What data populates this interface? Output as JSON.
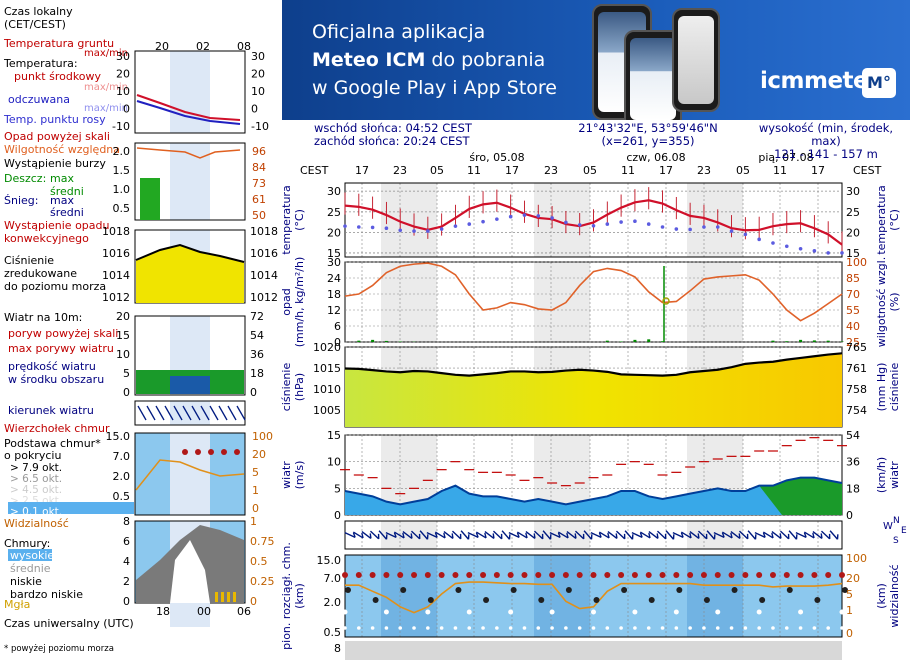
{
  "legend": {
    "time_zone": "Czas lokalny\n(CET/CEST)",
    "top_hours": [
      "20",
      "02",
      "08"
    ],
    "temp_ground": "Temperatura gruntu",
    "temp_ground_maxmin": "max/min",
    "temperature": "Temperatura:",
    "temp_mid": "punkt środkowy",
    "temp_maxmin": "max/min",
    "temp_feel": "odczuwana",
    "temp_feel_maxmin": "max/min",
    "temp_dew": "Temp. punktu rosy",
    "precip_above": "Opad powyżej skali",
    "humidity": "Wilgotność względna",
    "storm": "Wystąpienie burzy",
    "rain": "Deszcz:",
    "rain_max": "max",
    "rain_avg": "średni",
    "snow": "Śnieg:",
    "snow_max": "max",
    "snow_avg": "średni",
    "convective": "Wystąpienie opadu\nkonwekcyjnego",
    "pressure": "Ciśnienie\nzredukowane\ndo poziomu morza",
    "wind_at": "Wiatr na 10m:",
    "gust_above": "poryw powyżej skali",
    "gust_max": "max porywy wiatru",
    "wind_speed": "prędkość wiatru\nw środku obszaru",
    "wind_dir": "kierunek wiatru",
    "cloud_top": "Wierzchołek chmur",
    "cloud_base": "Podstawa chmur*\no pokryciu",
    "okt": [
      "> 7.9 okt.",
      "> 6.5 okt.",
      "> 4.5 okt.",
      "> 2.5 okt.",
      "> 0.1 okt."
    ],
    "visibility": "Widzialność",
    "clouds": "Chmury:",
    "cloud_levels": [
      "wysokie",
      "średnie",
      "niskie",
      "bardzo niskie"
    ],
    "fog": "Mgła",
    "utc": "Czas uniwersalny (UTC)",
    "bottom_hours": [
      "18",
      "00",
      "06"
    ],
    "footnote": "* powyżej poziomu morza"
  },
  "banner": {
    "line1": "Oficjalna aplikacja",
    "line2_bold": "Meteo ICM",
    "line2_rest": " do pobrania",
    "line3": "w Google Play i App Store",
    "logo": "icmmeteo",
    "badge": "M°"
  },
  "info": {
    "sunrise": "wschód słońca: 04:52 CEST",
    "sunset": "zachód słońca: 20:24 CEST",
    "coords": "21°43'32\"E, 53°59'46\"N",
    "grid": "(x=261,  y=355)",
    "height_label": "wysokość (min, środek, max)",
    "height_values": "121 - 141 - 157 m"
  },
  "chart_data": [
    {
      "type": "line",
      "title": "temperatura",
      "days": [
        "śro, 05.08",
        "czw, 06.08",
        "pią, 07.08"
      ],
      "hour_ticks": [
        "17",
        "23",
        "05",
        "11",
        "17",
        "23",
        "05",
        "11",
        "17",
        "23",
        "05",
        "11",
        "17"
      ],
      "tz_label": "CEST",
      "ylabel": "temperatura\n(°C)",
      "ylim": [
        14,
        32
      ],
      "y_ticks": [
        15,
        20,
        25,
        30
      ],
      "series": [
        {
          "name": "temperatura",
          "color": "#d0102a",
          "values": [
            26.5,
            26.2,
            25.5,
            24.2,
            22.6,
            21.4,
            20.6,
            21.4,
            23.5,
            25.7,
            26.8,
            27.2,
            26.0,
            24.5,
            23.5,
            23.2,
            22.0,
            21.5,
            22.4,
            24.3,
            26.0,
            27.3,
            27.8,
            27.0,
            25.4,
            24.0,
            23.5,
            22.4,
            21.0,
            20.5,
            20.6,
            21.5,
            22.0,
            22.2,
            21.0,
            19.5,
            17.0
          ]
        },
        {
          "name": "punkt rosy",
          "color": "#5c5ce0",
          "values": [
            21.5,
            21.3,
            21.2,
            21.0,
            20.5,
            20.3,
            20.3,
            20.8,
            21.5,
            22.0,
            22.6,
            23.2,
            23.8,
            24.2,
            24.0,
            23.5,
            22.4,
            21.8,
            21.6,
            22.0,
            22.5,
            22.7,
            22.0,
            21.3,
            20.8,
            20.7,
            21.3,
            21.3,
            20.3,
            19.5,
            18.3,
            17.4,
            16.6,
            16.0,
            15.5,
            15.0,
            15.0
          ]
        }
      ]
    },
    {
      "type": "bar",
      "title": "opad",
      "ylabel": "opad\n(mm/h, kg/m²/h)",
      "ylim": [
        0,
        30
      ],
      "y_ticks": [
        0,
        6,
        12,
        18,
        24,
        30
      ],
      "y2label": "wilgotność wzgl.\n(%)",
      "y2lim": [
        25,
        100
      ],
      "y2_ticks": [
        25,
        40,
        55,
        70,
        85,
        100
      ],
      "series": [
        {
          "name": "wilgotność względna",
          "color": "#e0622a",
          "values": [
            68,
            70,
            78,
            90,
            96,
            98,
            99,
            96,
            88,
            70,
            55,
            57,
            62,
            60,
            56,
            55,
            62,
            78,
            91,
            94,
            92,
            86,
            72,
            62,
            63,
            73,
            84,
            86,
            87,
            88,
            83,
            70,
            55,
            45,
            52,
            61,
            70
          ]
        },
        {
          "name": "opad",
          "color": "#008a00",
          "values": [
            0,
            0.5,
            0.8,
            0.4,
            0.2,
            0.1,
            0,
            0,
            0,
            0,
            0,
            0,
            0,
            0,
            0,
            0,
            0,
            0,
            0,
            0.5,
            0.2,
            0.8,
            1.0,
            0.3,
            0,
            0,
            0,
            0,
            0,
            0,
            0,
            0.5,
            0.3,
            0.8,
            0.6,
            0.5,
            0.2
          ]
        }
      ]
    },
    {
      "type": "line",
      "title": "ciśnienie",
      "ylabel": "ciśnienie\n(hPa)",
      "ylim": [
        1001,
        1020
      ],
      "y_ticks": [
        1005,
        1010,
        1015,
        1020
      ],
      "y2label": "(mm Hg)\nciśnienie",
      "y2_ticks": [
        754,
        758,
        761,
        765
      ],
      "series": [
        {
          "name": "ciśnienie",
          "color": "#000000",
          "values": [
            1014.9,
            1014.8,
            1014.5,
            1014.2,
            1014.0,
            1014.3,
            1014.2,
            1013.8,
            1013.4,
            1013.2,
            1013.5,
            1013.8,
            1014.2,
            1014.2,
            1014.0,
            1014.1,
            1014.4,
            1014.6,
            1014.4,
            1014.1,
            1013.5,
            1013.4,
            1013.3,
            1013.2,
            1013.4,
            1014.0,
            1014.3,
            1014.6,
            1015.2,
            1016.0,
            1016.3,
            1016.5,
            1017.0,
            1017.4,
            1017.8,
            1018.2,
            1018.5
          ]
        }
      ]
    },
    {
      "type": "line",
      "title": "wiatr",
      "ylabel": "wiatr\n(m/s)",
      "ylim": [
        0,
        15
      ],
      "y_ticks": [
        0,
        5,
        10,
        15
      ],
      "y2label": "(km/h)\nwiatr",
      "y2_ticks": [
        0,
        18,
        36,
        54
      ],
      "series": [
        {
          "name": "prędkość wiatru",
          "color": "#003e99",
          "values": [
            4.5,
            4.0,
            3.5,
            2.5,
            2.0,
            2.5,
            3.0,
            4.5,
            5.5,
            4.0,
            3.5,
            3.5,
            3.0,
            2.5,
            3.0,
            2.5,
            2.0,
            2.5,
            3.0,
            3.5,
            4.5,
            4.5,
            3.5,
            3.0,
            3.5,
            4.0,
            4.5,
            5.0,
            4.5,
            4.5,
            5.5,
            5.5,
            6.5,
            7.0,
            7.0,
            6.5,
            6.0
          ]
        },
        {
          "name": "max porywy wiatru",
          "color": "#c00000",
          "values": [
            8.5,
            7.5,
            7.0,
            5.0,
            4.0,
            5.0,
            6.5,
            8.5,
            10.0,
            8.5,
            8.0,
            8.0,
            7.5,
            6.5,
            7.0,
            6.0,
            5.5,
            6.0,
            7.0,
            7.5,
            9.5,
            10.0,
            9.5,
            7.5,
            8.0,
            9.0,
            10.0,
            10.5,
            11.0,
            11.0,
            12.0,
            12.0,
            13.0,
            14.0,
            14.5,
            14.0,
            13.0
          ]
        }
      ]
    },
    {
      "type": "scatter",
      "title": "podstawa chmur i widzialność",
      "ylabel": "pion. rozciągł. chm.\n(km)",
      "y_ticks": [
        0.5,
        2.0,
        7.0,
        15.0
      ],
      "y2label": "(km)\nwidzialność",
      "y2_ticks": [
        0,
        1,
        5,
        20,
        100
      ],
      "series": [
        {
          "name": "widzialność",
          "color": "#e0901a",
          "values": [
            18,
            18,
            12,
            8,
            4,
            2.5,
            4,
            10,
            20,
            22,
            22,
            21,
            20,
            20,
            19,
            19,
            6,
            3.5,
            4,
            12,
            20,
            20,
            20,
            20,
            20,
            20,
            18,
            18,
            18,
            18,
            18,
            16,
            17,
            17,
            17,
            18,
            20
          ]
        }
      ]
    }
  ],
  "bottom_label": "e  pion. rozciągł. chm.",
  "bottom_tick": "8"
}
